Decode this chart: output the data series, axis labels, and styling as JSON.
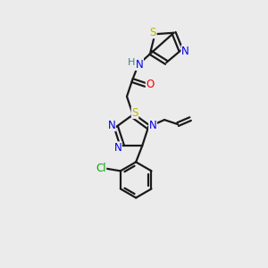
{
  "bg_color": "#ebebeb",
  "bond_color": "#1a1a1a",
  "atom_colors": {
    "S": "#b8b800",
    "N": "#0000ee",
    "O": "#ee0000",
    "Cl": "#00aa00",
    "H": "#338888",
    "C": "#1a1a1a"
  },
  "figsize": [
    3.0,
    3.0
  ],
  "dpi": 100,
  "lw": 1.6,
  "fs": 8.5
}
